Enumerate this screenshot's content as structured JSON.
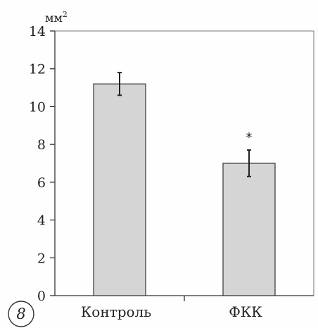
{
  "panel": {
    "label": "8"
  },
  "chart_data": {
    "type": "bar",
    "unit_label": "мм",
    "unit_superscript": "2",
    "categories": [
      "Контроль",
      "ФКК"
    ],
    "values": [
      11.2,
      7.0
    ],
    "errors": [
      0.6,
      0.7
    ],
    "annotations": [
      "",
      "*"
    ],
    "ylim": [
      0,
      14
    ],
    "yticks": [
      0,
      2,
      4,
      6,
      8,
      10,
      12,
      14
    ],
    "grid": false,
    "bar_color": "#d5d5d5",
    "edge_color": "#333333"
  }
}
